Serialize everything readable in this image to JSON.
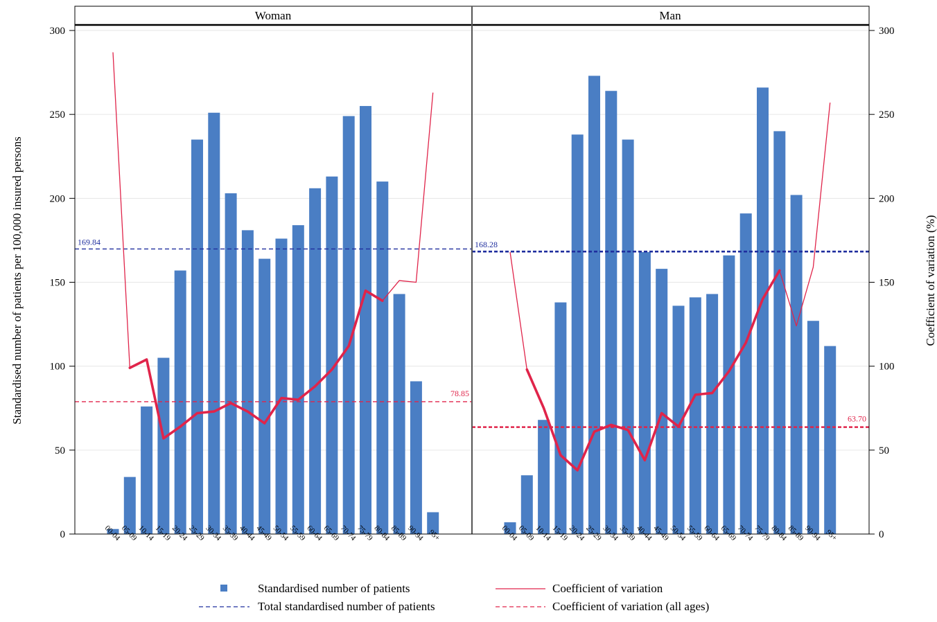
{
  "colors": {
    "bar": "#4a7ec4",
    "cv_line": "#e0244a",
    "total_line": "#1f2e9e",
    "cv_all_line": "#e0244a",
    "grid": "#e6e6e6"
  },
  "chart_data": {
    "type": "bar",
    "y_left_label": "Standardised number of patients per 100,000 insured persons",
    "y_right_label": "Coefficient of variation (%)",
    "ylim": [
      0,
      300
    ],
    "y_ticks": [
      "0",
      "50",
      "100",
      "150",
      "200",
      "250",
      "300"
    ],
    "grid": true,
    "legend_position": "bottom",
    "categories": [
      "00-04",
      "05-09",
      "10-14",
      "15-19",
      "20-24",
      "25-29",
      "30-34",
      "35-39",
      "40-44",
      "45-49",
      "50-54",
      "55-59",
      "60-64",
      "65-69",
      "70-74",
      "75-79",
      "80-84",
      "85-89",
      "90-94",
      "95+"
    ],
    "panels": [
      {
        "title": "Woman",
        "standardised_patients": [
          3,
          34,
          76,
          105,
          157,
          235,
          251,
          203,
          181,
          164,
          176,
          184,
          206,
          213,
          249,
          255,
          210,
          143,
          91,
          13
        ],
        "cv_thin": [
          287,
          99,
          104,
          57,
          64,
          72,
          73,
          78,
          73,
          66,
          81,
          80,
          88,
          98,
          112,
          145,
          139,
          151,
          150,
          263
        ],
        "cv_thick": [
          null,
          99,
          104,
          57,
          64,
          72,
          73,
          78,
          73,
          66,
          81,
          80,
          88,
          98,
          112,
          145,
          139,
          null,
          null,
          null
        ],
        "total_standardised": 169.84,
        "total_label": "169.84",
        "cv_all_ages": 78.85,
        "cv_all_label": "78.85"
      },
      {
        "title": "Man",
        "standardised_patients": [
          7,
          35,
          68,
          138,
          238,
          273,
          264,
          235,
          168,
          158,
          136,
          141,
          143,
          166,
          191,
          266,
          240,
          202,
          127,
          112
        ],
        "cv_thin": [
          168,
          98,
          75,
          47,
          38,
          61,
          65,
          62,
          44,
          72,
          64,
          83,
          84,
          97,
          114,
          140,
          157,
          124,
          159,
          257
        ],
        "cv_thick": [
          null,
          98,
          75,
          47,
          38,
          61,
          65,
          62,
          44,
          72,
          64,
          83,
          84,
          97,
          114,
          140,
          157,
          null,
          null,
          null
        ],
        "total_standardised": 168.28,
        "total_label": "168.28",
        "cv_all_ages": 63.7,
        "cv_all_label": "63.70"
      }
    ],
    "legend": [
      {
        "key": "bar",
        "label": "Standardised number of patients"
      },
      {
        "key": "cv",
        "label": "Coefficient of variation"
      },
      {
        "key": "total",
        "label": "Total standardised number of patients"
      },
      {
        "key": "cv_all",
        "label": "Coefficient of variation (all ages)"
      }
    ]
  }
}
